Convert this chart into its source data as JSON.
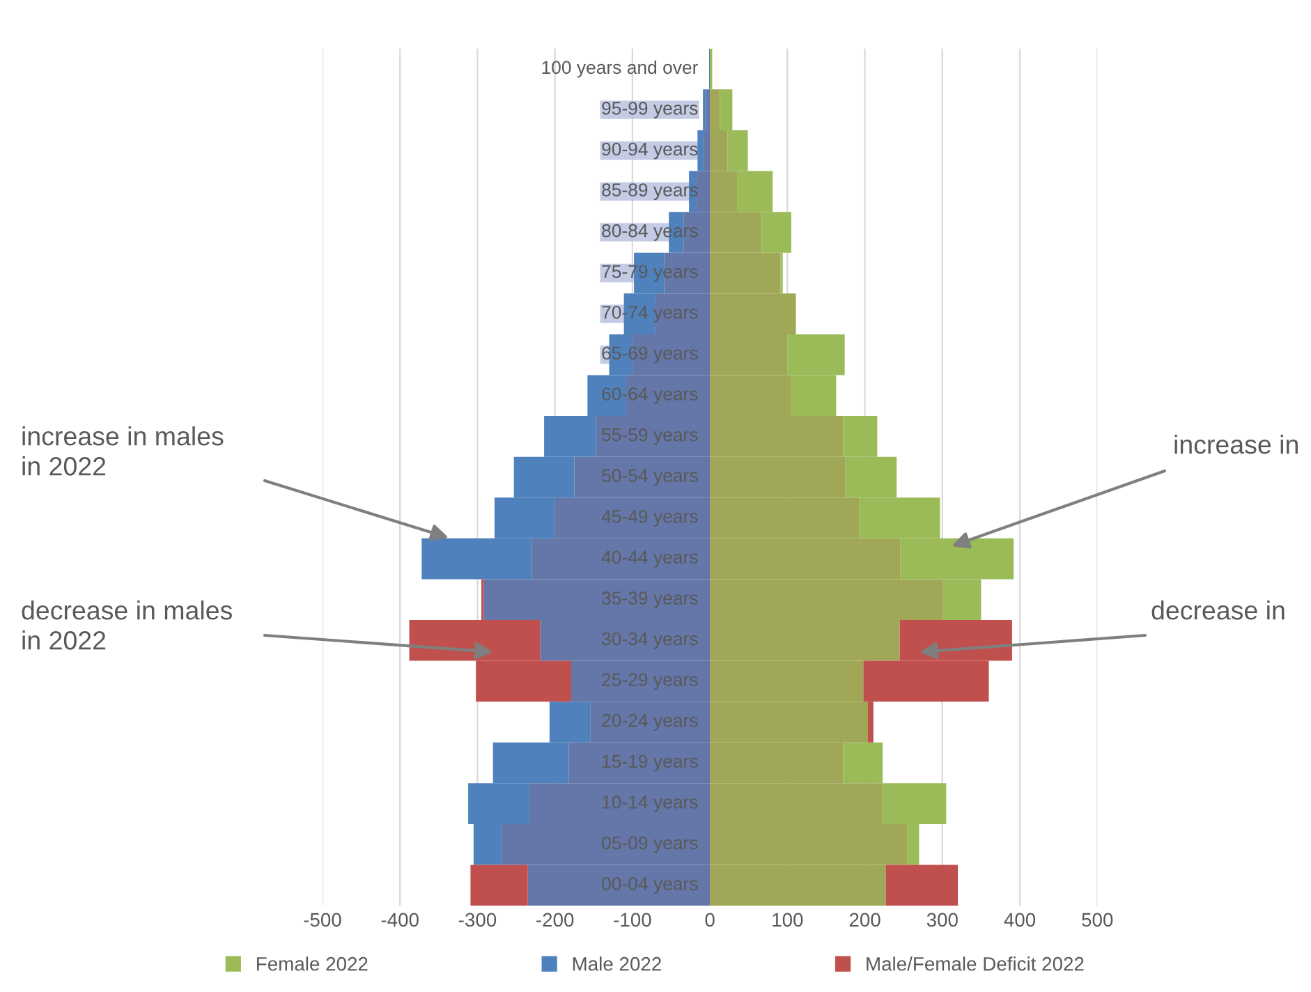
{
  "chart_data": {
    "type": "bar",
    "orientation": "horizontal",
    "stacked": true,
    "categories": [
      "100 years and over",
      "95-99 years",
      "90-94 years",
      "85-89 years",
      "80-84 years",
      "75-79 years",
      "70-74 years",
      "65-69 years",
      "60-64 years",
      "55-59 years",
      "50-54 years",
      "45-49 years",
      "40-44 years",
      "35-39 years",
      "30-34 years",
      "25-29 years",
      "20-24 years",
      "15-19 years",
      "10-14 years",
      "05-09 years",
      "00-04 years"
    ],
    "series": [
      {
        "color": "#a0a858",
        "values": [
          null,
          13,
          23,
          35,
          67,
          91,
          111,
          100,
          105,
          172,
          175,
          193,
          246,
          301,
          245,
          198,
          204,
          172,
          222,
          255,
          227
        ]
      },
      {
        "color": "#6477a8",
        "values": [
          null,
          -5,
          -8,
          -18,
          -34,
          -59,
          -71,
          -100,
          -108,
          -147,
          -175,
          -200,
          -230,
          -292,
          -219,
          -179,
          -154,
          -182,
          -233,
          -269,
          -235
        ]
      },
      {
        "name": "Female 2022",
        "color": "#9bbb59",
        "values": [
          3,
          16,
          26,
          46,
          38,
          3,
          null,
          74,
          58,
          44,
          66,
          104,
          146,
          49,
          null,
          null,
          null,
          51,
          83,
          15,
          null
        ]
      },
      {
        "name": "Male 2022",
        "color": "#4f81bd",
        "values": [
          -1,
          -4,
          -8,
          -9,
          -19,
          -39,
          -40,
          -30,
          -50,
          -67,
          -78,
          -78,
          -142,
          null,
          null,
          null,
          -53,
          -98,
          -79,
          -36,
          null
        ]
      },
      {
        "name": "Male/Female Deficit 2022",
        "color": "#c0504d",
        "values": [
          null,
          null,
          null,
          null,
          null,
          null,
          null,
          null,
          null,
          null,
          null,
          null,
          null,
          null,
          145,
          162,
          7,
          null,
          null,
          null,
          93
        ]
      },
      {
        "color": "#c0504d",
        "values": [
          null,
          null,
          null,
          null,
          null,
          null,
          null,
          null,
          null,
          null,
          null,
          null,
          null,
          -3,
          -169,
          -123,
          null,
          null,
          null,
          null,
          -74
        ]
      }
    ],
    "xlim": [
      -500,
      500
    ],
    "xticks": [
      -500,
      -400,
      -300,
      -200,
      -100,
      0,
      100,
      200,
      300,
      400,
      500
    ],
    "grid": "x",
    "legend": "bottom",
    "annotations": [
      "increase in males\nin 2022",
      "increase in",
      "decrease in males\nin 2022",
      "decrease in"
    ]
  }
}
